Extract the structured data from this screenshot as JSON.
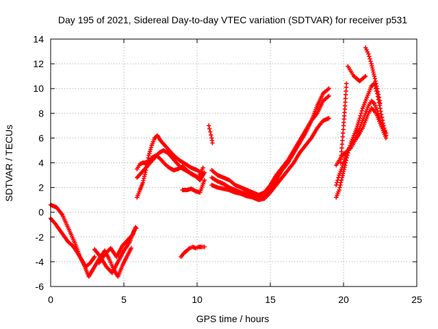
{
  "chart_data": {
    "type": "scatter",
    "title": "Day 195 of 2021, Sidereal Day-to-day VTEC variation (SDTVAR) for receiver p531",
    "xlabel": "GPS time / hours",
    "ylabel": "SDTVAR / TECUs",
    "xlim": [
      0,
      25
    ],
    "ylim": [
      -6,
      14
    ],
    "x_ticks": [
      "0",
      "5",
      "10",
      "15",
      "20",
      "25"
    ],
    "y_ticks": [
      "-6",
      "-4",
      "-2",
      "0",
      "2",
      "4",
      "6",
      "8",
      "10",
      "12",
      "14"
    ],
    "grid": true,
    "marker": "+",
    "color": "#ff0000",
    "series": [
      {
        "x": [
          0.0,
          0.4,
          0.8,
          1.1,
          1.4,
          1.7,
          2.0,
          2.3,
          2.6,
          2.9
        ],
        "y": [
          0.6,
          0.4,
          -0.2,
          -1.0,
          -1.8,
          -2.6,
          -3.6,
          -4.3,
          -5.2,
          -4.6
        ]
      },
      {
        "x": [
          0.0,
          0.3,
          0.6,
          0.9,
          1.2,
          1.5,
          1.8,
          2.1,
          2.4,
          2.7,
          3.0
        ],
        "y": [
          -0.5,
          -0.9,
          -1.4,
          -1.9,
          -2.4,
          -2.7,
          -3.2,
          -3.8,
          -4.4,
          -4.1,
          -3.6
        ]
      },
      {
        "x": [
          2.8,
          3.1,
          3.4,
          3.7,
          4.0,
          4.3,
          4.6,
          4.9,
          5.2,
          5.5
        ],
        "y": [
          -4.8,
          -4.2,
          -3.6,
          -3.1,
          -3.8,
          -4.6,
          -5.2,
          -4.3,
          -3.6,
          -2.9
        ]
      },
      {
        "x": [
          3.0,
          3.4,
          3.8,
          4.2,
          4.6,
          5.0,
          5.4,
          5.7
        ],
        "y": [
          -3.0,
          -3.6,
          -4.4,
          -4.9,
          -4.0,
          -3.1,
          -2.4,
          -1.5
        ]
      },
      {
        "x": [
          3.3,
          3.7,
          4.1,
          4.5,
          4.9,
          5.3,
          5.6,
          5.8,
          5.85
        ],
        "y": [
          -4.1,
          -3.4,
          -2.9,
          -3.6,
          -2.7,
          -2.2,
          -1.8,
          -1.2,
          -1.3
        ]
      },
      {
        "x": [
          5.9,
          6.1,
          6.3,
          6.5,
          6.7,
          6.9,
          7.1,
          7.3,
          7.5,
          7.8,
          8.1,
          8.4,
          8.8,
          9.2,
          9.6,
          10.0,
          10.4
        ],
        "y": [
          1.2,
          1.8,
          2.4,
          3.4,
          4.6,
          5.4,
          6.0,
          6.2,
          5.8,
          5.4,
          5.0,
          4.6,
          4.2,
          3.9,
          3.6,
          3.4,
          3.1
        ]
      },
      {
        "x": [
          5.9,
          6.2,
          6.5,
          6.8,
          7.1,
          7.4,
          7.7,
          8.0,
          8.3,
          8.6,
          8.9,
          9.2,
          9.5,
          9.8,
          10.1,
          10.4
        ],
        "y": [
          2.8,
          3.2,
          3.6,
          4.0,
          4.4,
          4.8,
          5.0,
          4.8,
          4.4,
          4.0,
          3.6,
          3.4,
          3.2,
          3.0,
          2.8,
          3.6
        ]
      },
      {
        "x": [
          5.9,
          6.1,
          6.3,
          6.5,
          6.7,
          6.9,
          7.2,
          7.5,
          7.8,
          8.1,
          8.4,
          8.7,
          9.0,
          9.3,
          9.6,
          9.9,
          10.2,
          10.5
        ],
        "y": [
          3.5,
          3.9,
          4.0,
          4.0,
          4.1,
          4.4,
          4.6,
          4.3,
          3.9,
          3.6,
          3.4,
          3.5,
          3.7,
          3.4,
          3.1,
          2.9,
          2.6,
          3.2
        ]
      },
      {
        "x": [
          9.0,
          9.3,
          9.6,
          9.9,
          10.2,
          10.5
        ],
        "y": [
          1.8,
          1.8,
          1.9,
          1.7,
          1.6,
          2.6
        ]
      },
      {
        "x": [
          8.9,
          9.1,
          9.3,
          9.5,
          9.7,
          9.9,
          10.1,
          10.3,
          10.5
        ],
        "y": [
          -3.6,
          -3.3,
          -3.1,
          -2.9,
          -2.8,
          -2.9,
          -2.8,
          -2.8,
          -2.8
        ]
      },
      {
        "x": [
          10.8,
          10.9,
          11.0,
          11.05
        ],
        "y": [
          7.0,
          6.5,
          6.0,
          5.6
        ]
      },
      {
        "x": [
          11.0,
          11.4,
          11.8,
          12.2,
          12.6,
          13.0,
          13.4,
          13.8,
          14.2,
          14.6,
          15.0,
          15.4,
          15.8,
          16.2,
          16.6,
          17.0,
          17.4,
          17.8,
          18.2,
          18.6,
          19.0
        ],
        "y": [
          3.4,
          3.0,
          2.8,
          2.6,
          2.2,
          2.0,
          1.8,
          1.6,
          1.4,
          1.6,
          2.2,
          3.0,
          3.6,
          4.2,
          5.0,
          5.8,
          6.6,
          7.4,
          8.6,
          9.6,
          10.0
        ]
      },
      {
        "x": [
          11.0,
          11.4,
          11.8,
          12.2,
          12.6,
          13.0,
          13.4,
          13.8,
          14.2,
          14.6,
          15.0,
          15.4,
          15.8,
          16.2,
          16.6,
          17.0,
          17.4,
          17.8,
          18.2,
          18.6,
          19.0
        ],
        "y": [
          2.8,
          2.5,
          2.3,
          2.0,
          1.8,
          1.6,
          1.5,
          1.4,
          1.3,
          1.2,
          1.8,
          2.6,
          3.4,
          4.0,
          4.8,
          5.6,
          6.4,
          7.4,
          8.0,
          9.0,
          9.4
        ]
      },
      {
        "x": [
          11.0,
          11.4,
          11.8,
          12.2,
          12.6,
          13.0,
          13.4,
          13.8,
          14.2,
          14.6,
          15.0,
          15.4,
          15.8,
          16.2,
          16.6,
          17.0,
          17.4,
          17.8,
          18.2,
          18.6,
          19.0
        ],
        "y": [
          2.2,
          2.0,
          1.9,
          1.8,
          1.6,
          1.5,
          1.3,
          1.2,
          1.0,
          1.1,
          1.6,
          2.2,
          2.8,
          3.4,
          4.0,
          4.8,
          5.4,
          6.0,
          6.8,
          7.4,
          7.6
        ]
      },
      {
        "x": [
          19.5,
          19.7,
          19.9,
          20.1,
          20.3,
          20.5,
          20.7,
          20.9,
          21.1,
          21.3,
          21.5,
          21.7,
          21.9,
          22.1,
          22.3,
          22.5,
          22.7,
          22.9
        ],
        "y": [
          1.2,
          1.8,
          2.8,
          3.8,
          4.8,
          5.6,
          6.2,
          6.8,
          7.6,
          8.4,
          9.0,
          9.6,
          10.2,
          10.4,
          9.6,
          8.4,
          7.2,
          6.2
        ]
      },
      {
        "x": [
          19.5,
          19.7,
          19.9,
          20.1,
          20.3,
          20.5,
          20.7,
          20.9,
          21.1,
          21.3,
          21.5,
          21.7,
          21.9,
          22.1,
          22.3,
          22.5,
          22.7,
          22.9
        ],
        "y": [
          2.2,
          3.0,
          3.6,
          4.4,
          5.0,
          5.4,
          5.8,
          6.2,
          6.8,
          7.4,
          8.0,
          8.6,
          9.0,
          8.8,
          8.2,
          7.4,
          6.8,
          6.4
        ]
      },
      {
        "x": [
          19.5,
          19.7,
          19.9,
          20.1,
          20.3,
          20.5,
          20.7,
          20.9,
          21.1,
          21.3,
          21.5,
          21.7,
          21.9,
          22.1,
          22.3,
          22.5,
          22.7,
          22.9
        ],
        "y": [
          3.8,
          4.2,
          4.6,
          4.8,
          5.0,
          5.2,
          5.6,
          6.0,
          6.4,
          6.8,
          7.4,
          8.0,
          8.4,
          8.2,
          7.8,
          7.2,
          6.6,
          6.0
        ]
      },
      {
        "x": [
          19.8,
          19.9,
          20.0,
          20.1,
          20.2
        ],
        "y": [
          4.0,
          5.5,
          7.0,
          8.6,
          10.4
        ]
      },
      {
        "x": [
          20.3,
          20.5,
          20.7,
          20.9,
          21.1,
          21.3,
          21.5
        ],
        "y": [
          11.8,
          11.4,
          11.0,
          10.8,
          10.6,
          10.8,
          11.0
        ]
      },
      {
        "x": [
          21.5,
          21.7,
          21.9,
          22.1,
          22.3,
          22.5
        ],
        "y": [
          13.3,
          12.8,
          12.0,
          11.0,
          10.0,
          8.8
        ]
      }
    ]
  }
}
